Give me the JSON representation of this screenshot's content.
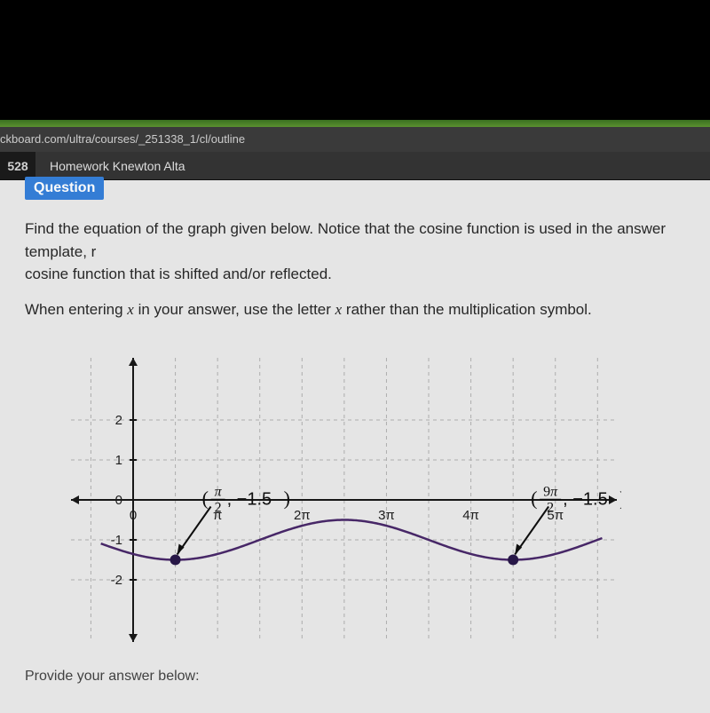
{
  "url": "ckboard.com/ultra/courses/_251338_1/cl/outline",
  "tab_number": "528",
  "tab_title": "Homework Knewton Alta",
  "question_label": "Question",
  "question_p1_a": "Find the equation of the graph given below. Notice that the cosine function is used in the answer template, r",
  "question_p1_b": "cosine function that is shifted and/or reflected.",
  "question_p2_a": "When entering ",
  "question_p2_x1": "x",
  "question_p2_b": " in your answer, use the letter ",
  "question_p2_x2": "x",
  "question_p2_c": " rather than the multiplication symbol.",
  "answer_prompt": "Provide your answer below:",
  "graph": {
    "type": "line",
    "background_color": "#e8e8e8",
    "grid_color": "#b0b0b0",
    "axis_color": "#1a1a1a",
    "curve_color": "#4a2a6a",
    "curve_width": 2.5,
    "point_color": "#2a1a4a",
    "xlim": [
      -1.2,
      17.5
    ],
    "ylim": [
      -3,
      3
    ],
    "yticks": [
      -2,
      -1,
      0,
      1,
      2
    ],
    "ytick_labels": [
      "-2",
      "-1",
      "0",
      "1",
      "2"
    ],
    "xticks": [
      0,
      3.1416,
      6.2832,
      9.4248,
      12.566,
      15.708
    ],
    "xtick_labels": [
      "0",
      "π",
      "2π",
      "3π",
      "4π",
      "5π"
    ],
    "label_fontsize": 17,
    "tick_fontsize": 15,
    "points": [
      {
        "x": 1.5708,
        "y": -1.5,
        "label_html": "(π/2, −1.5)"
      },
      {
        "x": 14.137,
        "y": -1.5,
        "label_html": "(9π/2, −1.5)"
      }
    ],
    "amplitude": 0.5,
    "vshift": -1.0,
    "freq": 0.5,
    "phase": 1.5708,
    "x_grid_step_pi_over_2": true
  }
}
